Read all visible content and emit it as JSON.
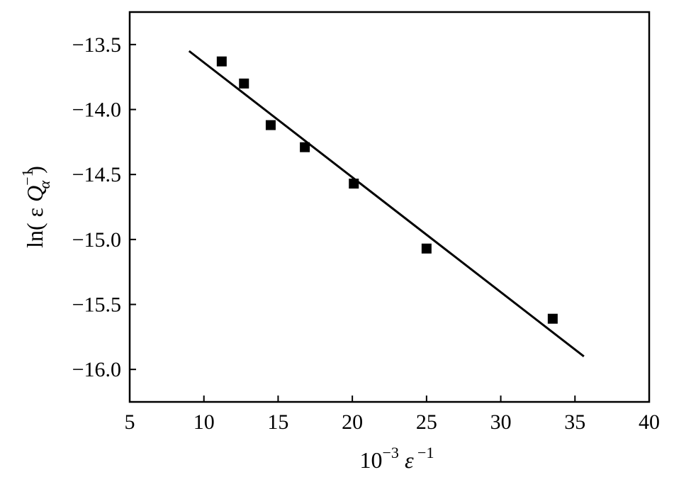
{
  "chart_data": {
    "type": "scatter",
    "title": "",
    "xlabel": {
      "base": "10",
      "exp": "−3",
      "symbol": "ε",
      "sup": " −1"
    },
    "ylabel": {
      "prefix": "ln( ε ",
      "symbol": "Q",
      "sup": "−1",
      "sub": "α",
      "suffix": ")"
    },
    "xlim": [
      5,
      40
    ],
    "ylim": [
      -16.25,
      -13.25
    ],
    "x_ticks": [
      5,
      10,
      15,
      20,
      25,
      30,
      35,
      40
    ],
    "y_ticks": [
      -13.5,
      -14.0,
      -14.5,
      -15.0,
      -15.5,
      -16.0
    ],
    "x_tick_labels": [
      "5",
      "10",
      "15",
      "20",
      "25",
      "30",
      "35",
      "40"
    ],
    "y_tick_labels": [
      "−13.5",
      "−14.0",
      "−14.5",
      "−15.0",
      "−15.5",
      "−16.0"
    ],
    "grid": false,
    "series": [
      {
        "marker": "square",
        "x": [
          11.2,
          12.7,
          14.5,
          16.8,
          20.1,
          25.0,
          33.5
        ],
        "y": [
          -13.63,
          -13.8,
          -14.12,
          -14.29,
          -14.57,
          -15.07,
          -15.61
        ]
      }
    ],
    "fit_line": {
      "x": [
        9.0,
        35.6
      ],
      "y": [
        -13.55,
        -15.9
      ]
    }
  }
}
